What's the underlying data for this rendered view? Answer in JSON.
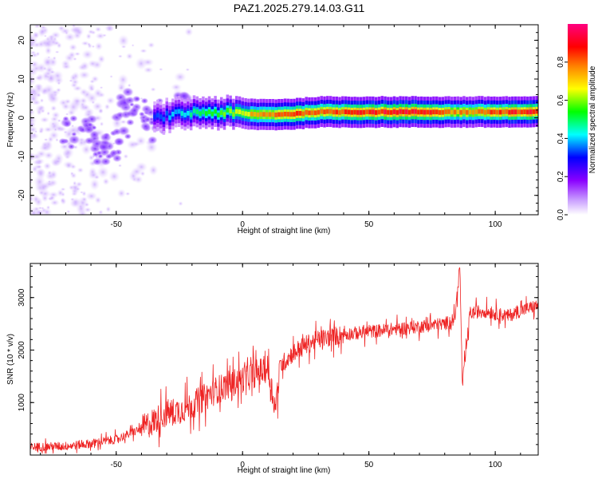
{
  "page_title": "PAZ1.2025.279.14.03.G11",
  "chart_data": [
    {
      "type": "heatmap",
      "title": "PAZ1.2025.279.14.03.G11",
      "xlabel": "Height of straight line (km)",
      "ylabel": "Frequency (Hz)",
      "xlim": [
        -84,
        117
      ],
      "ylim": [
        -25,
        24
      ],
      "x_ticks": [
        -50,
        0,
        50,
        100
      ],
      "x_tick_labels": [
        "-50",
        "0",
        "50",
        "100"
      ],
      "y_ticks": [
        -20,
        -10,
        0,
        10,
        20
      ],
      "y_tick_labels": [
        "-20",
        "-10",
        "0",
        "10",
        "20"
      ],
      "colorbar": {
        "label": "Normalized spectral amplitude",
        "range": [
          0,
          1
        ],
        "ticks": [
          0.0,
          0.2,
          0.4,
          0.6,
          0.8
        ],
        "tick_labels": [
          "0.0",
          "0.2",
          "0.4",
          "0.6",
          "0.8"
        ],
        "colormap": [
          "#ffffff",
          "#8a00ff",
          "#0000ff",
          "#00ffff",
          "#00ff00",
          "#ffff00",
          "#ff8000",
          "#ff0000",
          "#ff0080"
        ]
      },
      "description": "Signal band centred near 1.5 Hz from ~-20 km upward; scattered noise blobs below -20 km",
      "ridge": {
        "x": [
          -35,
          -25,
          -15,
          -5,
          0,
          10,
          20,
          30,
          50,
          70,
          85,
          100,
          117
        ],
        "frequency": [
          0,
          1,
          1.5,
          1.2,
          1.0,
          0.8,
          1.0,
          1.5,
          1.5,
          1.5,
          1.5,
          1.5,
          1.5
        ],
        "amplitude": [
          0.3,
          0.4,
          0.5,
          0.6,
          0.7,
          0.8,
          0.9,
          0.9,
          0.95,
          0.95,
          0.8,
          0.9,
          0.95
        ]
      }
    },
    {
      "type": "line",
      "xlabel": "Height of straight line (km)",
      "ylabel": "SNR (10 * v/v)",
      "xlim": [
        -84,
        117
      ],
      "ylim": [
        0,
        3650
      ],
      "x_ticks": [
        -50,
        0,
        50,
        100
      ],
      "x_tick_labels": [
        "-50",
        "0",
        "50",
        "100"
      ],
      "y_ticks": [
        1000,
        2000,
        3000
      ],
      "y_tick_labels": [
        "1000",
        "2000",
        "3000"
      ],
      "line_color": "#ee2222",
      "series": [
        {
          "name": "SNR",
          "x": [
            -84,
            -70,
            -60,
            -50,
            -40,
            -30,
            -25,
            -20,
            -15,
            -10,
            -5,
            0,
            5,
            10,
            13,
            15,
            20,
            25,
            30,
            40,
            50,
            60,
            70,
            80,
            84,
            86,
            87,
            90,
            95,
            100,
            105,
            110,
            117
          ],
          "y": [
            150,
            170,
            220,
            300,
            500,
            800,
            850,
            950,
            1100,
            1250,
            1350,
            1450,
            1550,
            1650,
            900,
            1700,
            1950,
            2100,
            2200,
            2300,
            2350,
            2400,
            2450,
            2500,
            2600,
            3600,
            1300,
            2700,
            2750,
            2700,
            2650,
            2750,
            2850
          ]
        }
      ]
    }
  ]
}
